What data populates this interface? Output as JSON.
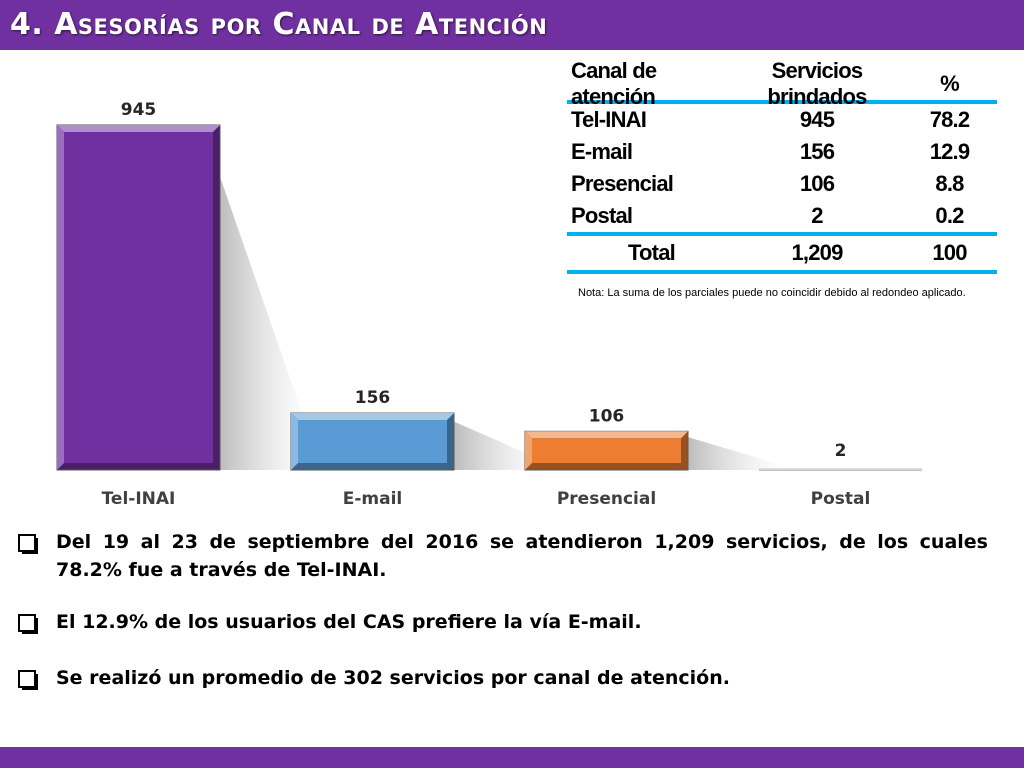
{
  "header": {
    "title": "4. Asesorías por Canal de Atención"
  },
  "colors": {
    "accent": "#7030a0",
    "table_rule": "#00b0f0"
  },
  "chart_data": {
    "type": "bar",
    "categories": [
      "Tel-INAI",
      "E-mail",
      "Presencial",
      "Postal"
    ],
    "values": [
      945,
      156,
      106,
      2
    ],
    "value_labels": [
      "945",
      "156",
      "106",
      "2"
    ],
    "colors": [
      "#7030a0",
      "#5b9bd5",
      "#ed7d31",
      "#d9d9d9"
    ],
    "title": "",
    "xlabel": "",
    "ylabel": "",
    "ylim": [
      0,
      945
    ],
    "grid": false,
    "legend": "none"
  },
  "table": {
    "headers": [
      "Canal de atención",
      "Servicios brindados",
      "%"
    ],
    "rows": [
      [
        "Tel-INAI",
        "945",
        "78.2"
      ],
      [
        "E-mail",
        "156",
        "12.9"
      ],
      [
        "Presencial",
        "106",
        "8.8"
      ],
      [
        "Postal",
        "2",
        "0.2"
      ]
    ],
    "total": [
      "Total",
      "1,209",
      "100"
    ]
  },
  "note": "Nota: La suma de los parciales puede no coincidir debido al redondeo aplicado.",
  "bullets": [
    "Del 19 al 23 de septiembre del 2016 se atendieron 1,209 servicios, de los cuales 78.2% fue a través de Tel-INAI.",
    "El 12.9% de los usuarios del CAS prefiere la vía E-mail.",
    "Se realizó un promedio de 302 servicios por canal de atención."
  ]
}
